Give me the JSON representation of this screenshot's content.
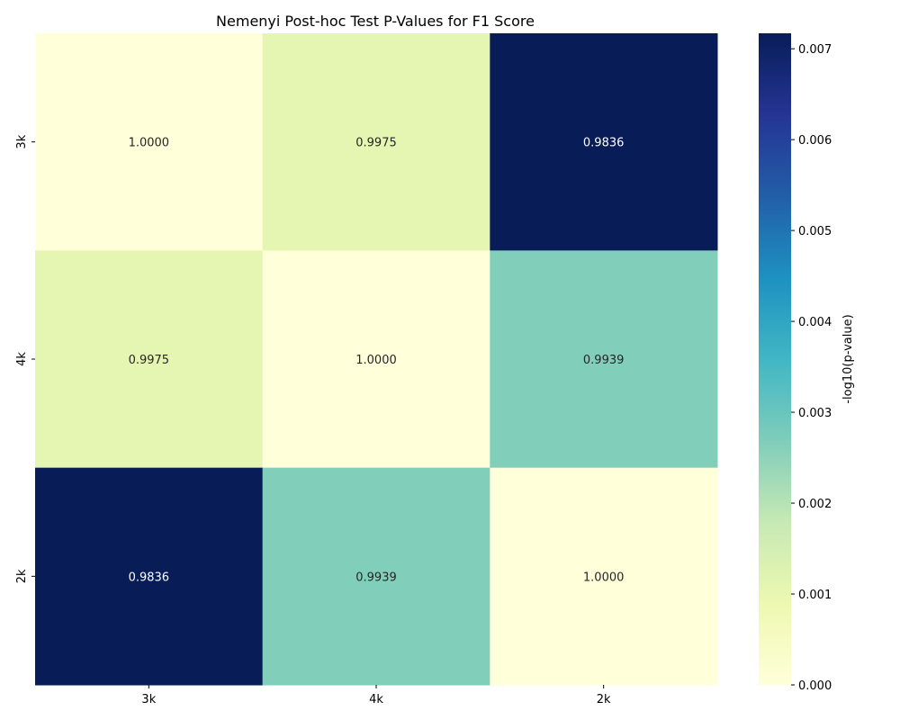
{
  "chart_data": {
    "type": "heatmap",
    "title": "Nemenyi Post-hoc Test P-Values for F1 Score",
    "x_categories": [
      "3k",
      "4k",
      "2k"
    ],
    "y_categories": [
      "3k",
      "4k",
      "2k"
    ],
    "cell_labels": [
      [
        "1.0000",
        "0.9975",
        "0.9836"
      ],
      [
        "0.9975",
        "1.0000",
        "0.9939"
      ],
      [
        "0.9836",
        "0.9939",
        "1.0000"
      ]
    ],
    "color_values": [
      [
        0.0,
        0.00108,
        0.00717
      ],
      [
        0.00108,
        0.0,
        0.00266
      ],
      [
        0.00717,
        0.00266,
        0.0
      ]
    ],
    "colormap": "YlGnBu",
    "colorbar": {
      "label": "-log10(p-value)",
      "min": 0.0,
      "max": 0.00717,
      "ticks": [
        "0.000",
        "0.001",
        "0.002",
        "0.003",
        "0.004",
        "0.005",
        "0.006",
        "0.007"
      ]
    },
    "grid": false,
    "legend": "none"
  }
}
